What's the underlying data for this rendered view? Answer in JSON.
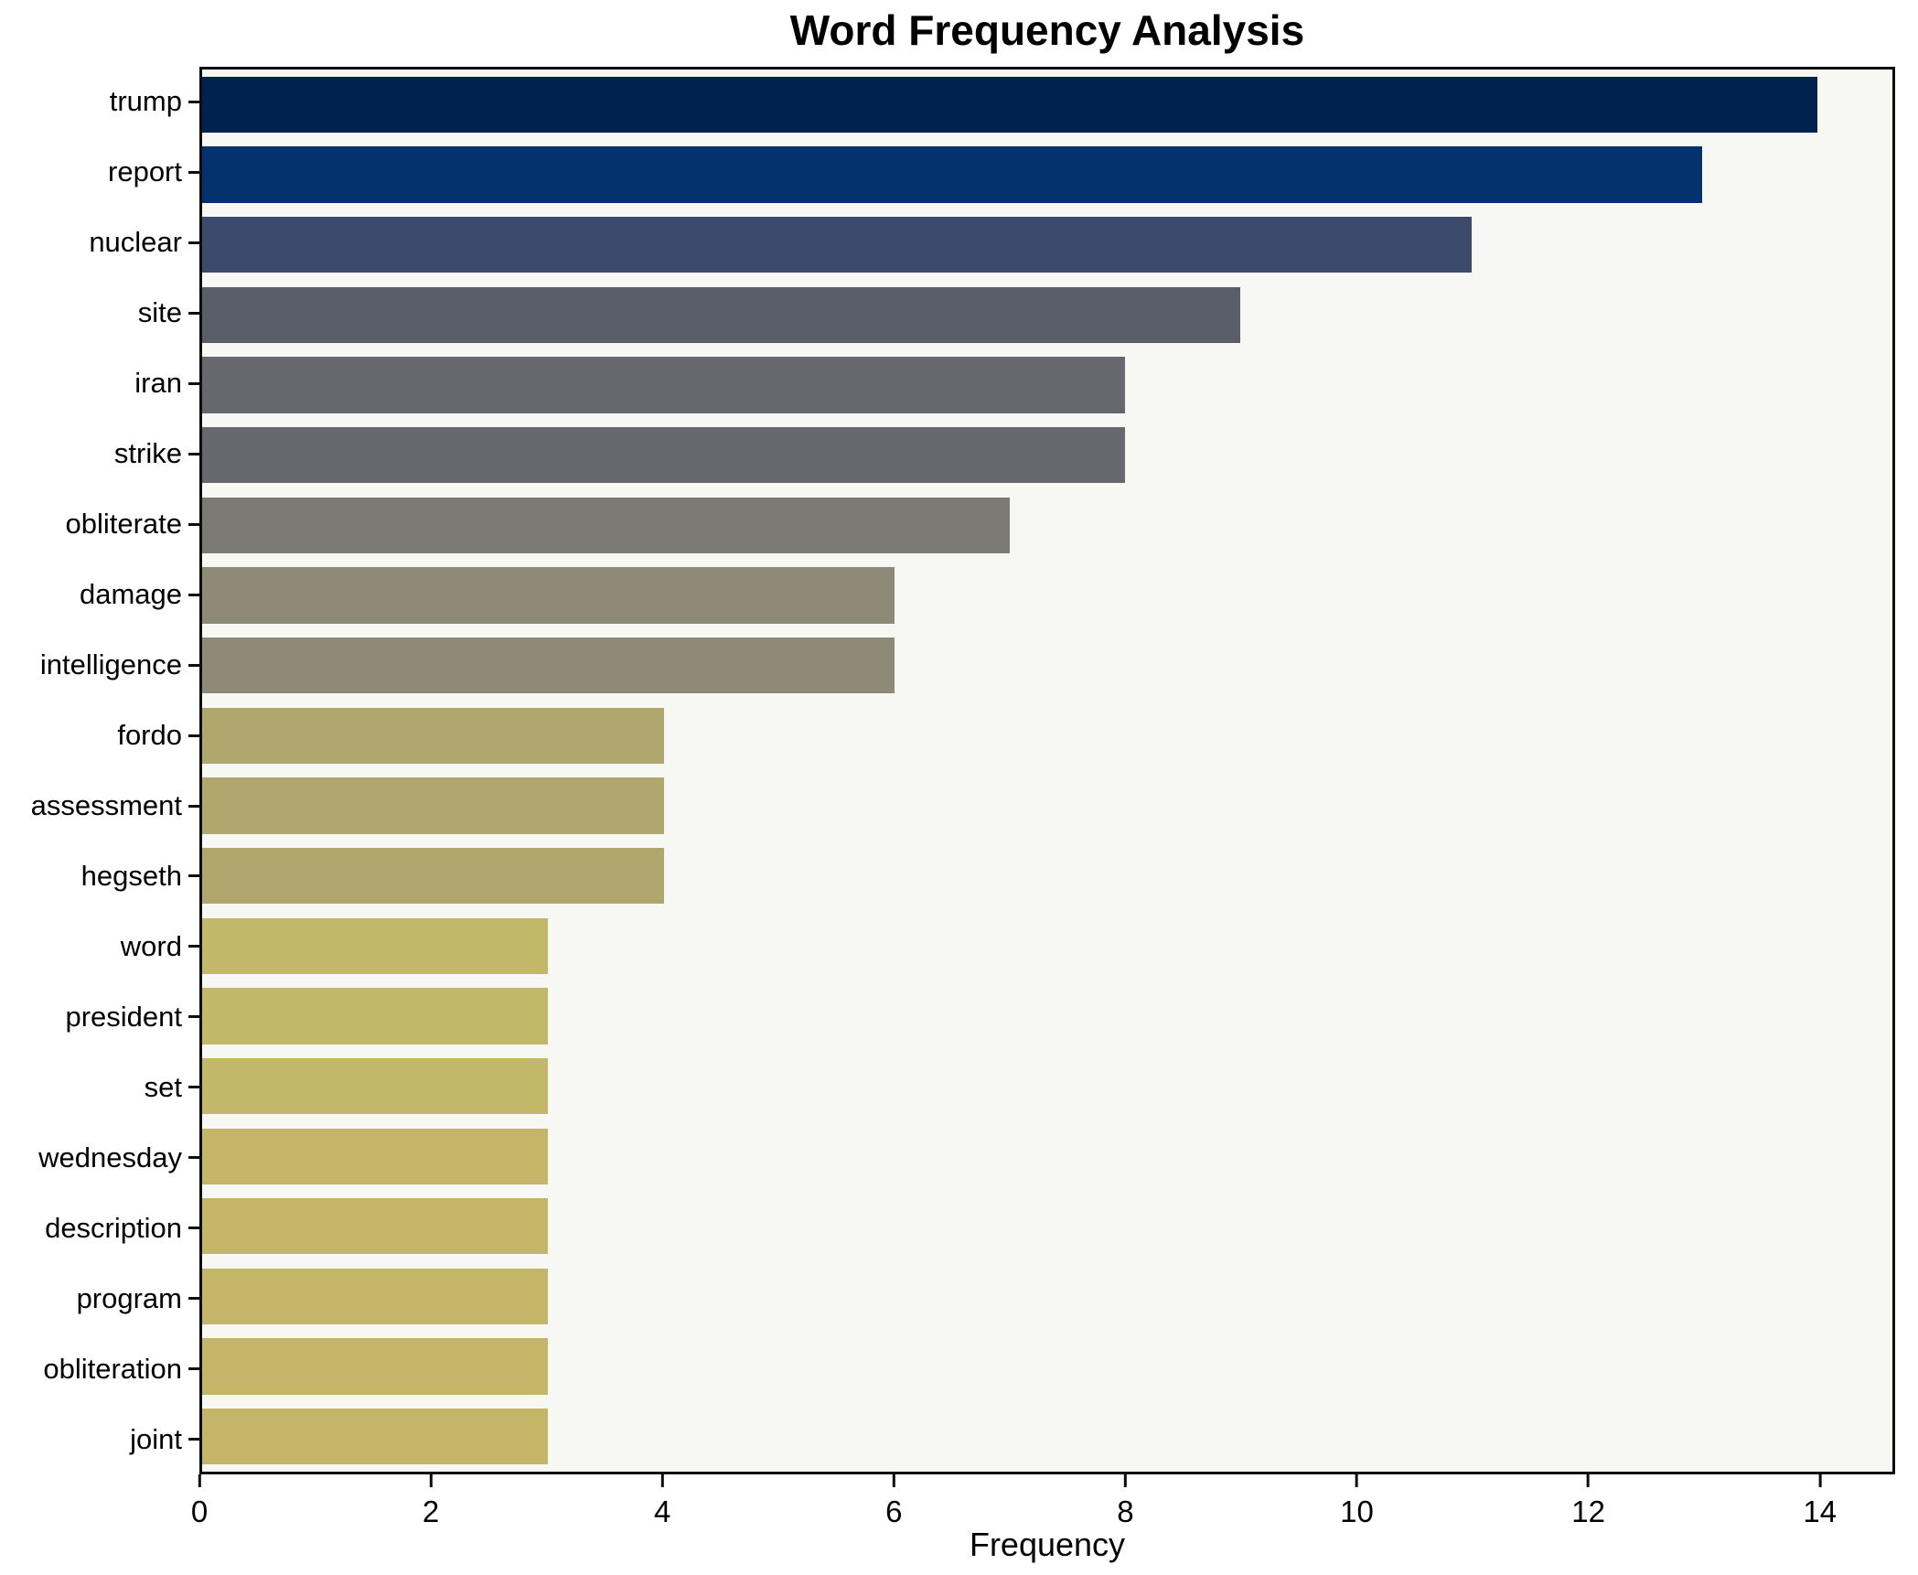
{
  "chart_data": {
    "type": "bar",
    "orientation": "horizontal",
    "title": "Word Frequency Analysis",
    "xlabel": "Frequency",
    "ylabel": "",
    "categories": [
      "trump",
      "report",
      "nuclear",
      "site",
      "iran",
      "strike",
      "obliterate",
      "damage",
      "intelligence",
      "fordo",
      "assessment",
      "hegseth",
      "word",
      "president",
      "set",
      "wednesday",
      "description",
      "program",
      "obliteration",
      "joint"
    ],
    "values": [
      14,
      13,
      11,
      9,
      8,
      8,
      7,
      6,
      6,
      4,
      4,
      4,
      3,
      3,
      3,
      3,
      3,
      3,
      3,
      3
    ],
    "bar_colors": [
      "#00224e",
      "#05316e",
      "#3c4a6c",
      "#5a5e69",
      "#67686d",
      "#67686d",
      "#7b7a75",
      "#8f8977",
      "#8f8977",
      "#afa76e",
      "#afa76e",
      "#afa76e",
      "#c3b76a",
      "#c3b76a",
      "#c3b76a",
      "#c4b669",
      "#c4b669",
      "#c4b669",
      "#c5b569",
      "#c5b569"
    ],
    "x_ticks": [
      0,
      2,
      4,
      6,
      8,
      10,
      12,
      14
    ],
    "xlim": [
      0,
      14.65
    ],
    "grid": false,
    "legend": "none",
    "plot_bg": "#f7f7f4",
    "fig_bg": "#ffffff",
    "spine_color": "#0c0c0c"
  }
}
